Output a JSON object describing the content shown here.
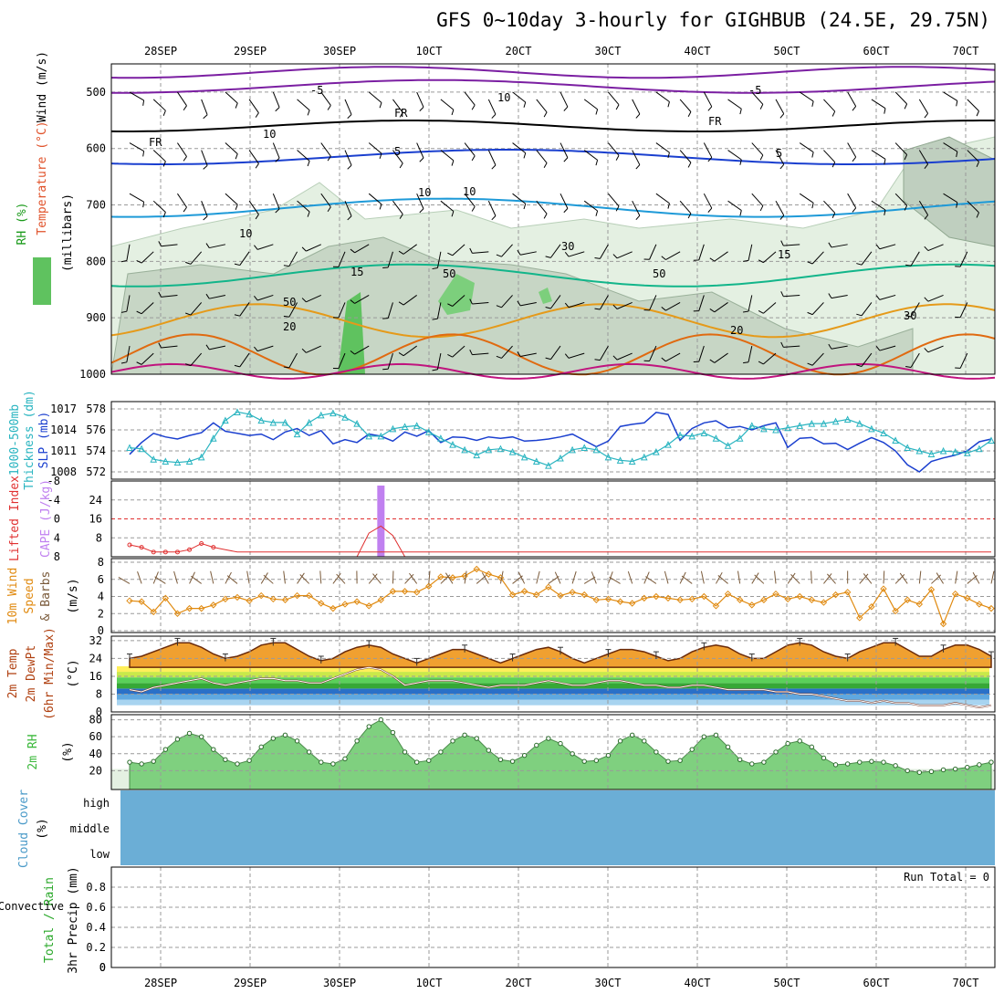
{
  "title": "GFS 0~10day 3-hourly for GIGHBUB (24.5E, 29.75N)",
  "colors": {
    "temp": "#7b1fa2",
    "freezing": "#000000",
    "rh_fill": "#d6e8d6",
    "slp": "#1a3fcf",
    "thick": "#29b4c0",
    "li": "#e03030",
    "cape": "#c080f0",
    "wind10": "#e08a10",
    "t2m": "#d96a0a",
    "rh2m": "#3ab83a",
    "cloud": "#6baed6"
  },
  "chart_data": [
    {
      "type": "heatmap",
      "name": "upper-air",
      "x": [
        "28SEP",
        "29SEP",
        "30SEP",
        "10CT",
        "20CT",
        "30CT",
        "40CT",
        "50CT",
        "60CT",
        "70CT"
      ],
      "ylabel_parts": [
        "RH (%)",
        "Temperature (°C)",
        "Wind (m/s)"
      ],
      "yunit": "(millibars)",
      "yticks": [
        500,
        600,
        700,
        800,
        900,
        1000
      ],
      "ylim": [
        1000,
        450
      ],
      "contour_labels": [
        "-5",
        "-5",
        "FR",
        "FR",
        "FR",
        "5",
        "5",
        "10",
        "10",
        "15",
        "15",
        "20",
        "20",
        "10",
        "10",
        "10",
        "30",
        "50",
        "50",
        "30",
        "50"
      ]
    },
    {
      "type": "line",
      "name": "slp-thickness",
      "ylabel_left": [
        "1000-500mb",
        "Thickness (dm)"
      ],
      "ylabel_right": "SLP (mb)",
      "yticks_left": [
        572,
        574,
        576,
        578
      ],
      "yticks_right": [
        1008,
        1011,
        1014,
        1017
      ],
      "series": [
        {
          "name": "SLP (mb)",
          "values": [
            1010.5,
            1012.2,
            1013.5,
            1013,
            1012.7,
            1013.2,
            1013.6,
            1015,
            1013.8,
            1013.5,
            1013.2,
            1013.4,
            1012.6,
            1013.7,
            1014.2,
            1013.2,
            1013.9,
            1012,
            1012.6,
            1012.2,
            1013.4,
            1013.1,
            1012.4,
            1013.7,
            1013.1,
            1013.9,
            1012.2,
            1013,
            1012.9,
            1012.5,
            1013,
            1012.8,
            1013,
            1012.4,
            1012.5,
            1012.7,
            1013,
            1013.4,
            1012.5,
            1011.6,
            1012.4,
            1014.5,
            1014.8,
            1015,
            1016.5,
            1016.2,
            1012.5,
            1014.2,
            1015,
            1015.3,
            1014.3,
            1014.5,
            1014,
            1014.6,
            1015,
            1011.5,
            1012.8,
            1012.9,
            1012,
            1012.1,
            1011.2,
            1012.1,
            1012.9,
            1012.2,
            1011,
            1009,
            1008,
            1009.5,
            1010,
            1010.4,
            1011,
            1012.3,
            1012.7
          ]
        },
        {
          "name": "Thickness (dm)",
          "values": [
            574.3,
            574.2,
            573.2,
            573,
            572.9,
            573,
            573.4,
            575.2,
            576.9,
            577.7,
            577.5,
            576.9,
            576.7,
            576.7,
            575.6,
            576.7,
            577.4,
            577.6,
            577.2,
            576.6,
            575.4,
            575.4,
            576.1,
            576.3,
            576.4,
            575.8,
            575.2,
            574.6,
            574.1,
            573.6,
            574.1,
            574.2,
            573.9,
            573.4,
            573,
            572.6,
            573.3,
            574.1,
            574.3,
            574.1,
            573.4,
            573.1,
            573,
            573.4,
            573.9,
            574.6,
            575.5,
            575.4,
            575.7,
            575.2,
            574.5,
            575.2,
            576.4,
            576.1,
            576,
            576.2,
            576.4,
            576.6,
            576.6,
            576.8,
            577,
            576.6,
            576.1,
            575.7,
            575,
            574.3,
            574,
            573.7,
            574,
            573.9,
            573.8,
            574.2,
            575
          ]
        }
      ]
    },
    {
      "type": "bar",
      "name": "li-cape",
      "ylabel_left": "Lifted Index",
      "ylabel_right": "CAPE (J/kg)",
      "yticks_left": [
        "-8",
        "-4",
        "0",
        "4",
        "8"
      ],
      "yticks_right": [
        8,
        16,
        24
      ],
      "cape_value": 32,
      "li_values": [
        5.5,
        6,
        7,
        7,
        7,
        6.5,
        5.2,
        6,
        6.5,
        7,
        7,
        7,
        7,
        7,
        7,
        7,
        7,
        7,
        7,
        7,
        7,
        7,
        7,
        7,
        7,
        7,
        7,
        7,
        7,
        7,
        7,
        7,
        7,
        7,
        7,
        7,
        7,
        7,
        7,
        7,
        7,
        7,
        7,
        7,
        7,
        7,
        7,
        7,
        7,
        7,
        7,
        7,
        7,
        7,
        7,
        7,
        7,
        7,
        7,
        7,
        7,
        7,
        7,
        7,
        7,
        7,
        7,
        7,
        7,
        7,
        7,
        7,
        7
      ]
    },
    {
      "type": "line",
      "name": "wind10",
      "ylabel": [
        "10m Wind",
        "Speed",
        "& Barbs"
      ],
      "yunit": "(m/s)",
      "yticks": [
        0,
        2,
        4,
        6,
        8
      ],
      "series": [
        {
          "name": "Speed",
          "values": [
            3.5,
            3.4,
            2.2,
            3.8,
            2,
            2.6,
            2.6,
            3,
            3.7,
            3.9,
            3.5,
            4.1,
            3.7,
            3.6,
            4.1,
            4.1,
            3.2,
            2.6,
            3.1,
            3.4,
            2.9,
            3.6,
            4.6,
            4.6,
            4.5,
            5.2,
            6.3,
            6.2,
            6.4,
            7.2,
            6.6,
            6.2,
            4.2,
            4.6,
            4.2,
            5.1,
            4.1,
            4.5,
            4.2,
            3.6,
            3.7,
            3.4,
            3.2,
            3.8,
            4,
            3.8,
            3.6,
            3.7,
            4,
            2.9,
            4.3,
            3.6,
            3,
            3.6,
            4.3,
            3.7,
            4,
            3.6,
            3.3,
            4.2,
            4.5,
            1.5,
            2.8,
            4.9,
            2.3,
            3.6,
            3.1,
            4.8,
            0.8,
            4.3,
            3.8,
            3.1,
            2.6
          ]
        }
      ]
    },
    {
      "type": "area",
      "name": "temp2m",
      "ylabel": [
        "2m Temp",
        "2m DewPt",
        "(6hr Min/Max)"
      ],
      "yunit": "(°C)",
      "yticks": [
        0,
        8,
        16,
        24,
        32
      ],
      "series": [
        {
          "name": "Temp",
          "values": [
            24,
            25,
            27,
            29,
            31,
            31,
            29,
            26,
            24,
            25,
            27,
            30,
            31,
            31,
            28,
            25,
            23,
            24,
            27,
            29,
            30,
            29,
            26,
            24,
            22,
            24,
            26,
            28,
            28,
            26,
            24,
            22,
            24,
            26,
            28,
            29,
            27,
            24,
            22,
            24,
            26,
            28,
            28,
            27,
            25,
            23,
            24,
            27,
            29,
            30,
            29,
            26,
            24,
            24,
            27,
            30,
            31,
            30,
            27,
            25,
            24,
            27,
            29,
            31,
            31,
            28,
            25,
            25,
            28,
            30,
            30,
            28,
            25
          ]
        },
        {
          "name": "DewPt",
          "values": [
            10,
            9,
            11,
            12,
            13,
            14,
            15,
            13,
            12,
            13,
            14,
            15,
            15,
            14,
            14,
            13,
            13,
            15,
            17,
            19,
            20,
            19,
            16,
            12,
            13,
            14,
            14,
            14,
            13,
            12,
            11,
            12,
            12,
            12,
            13,
            14,
            13,
            12,
            12,
            13,
            14,
            14,
            13,
            12,
            12,
            11,
            11,
            12,
            12,
            11,
            10,
            10,
            10,
            10,
            9,
            9,
            8,
            8,
            7,
            6,
            5,
            5,
            4,
            5,
            4,
            4,
            3,
            3,
            3,
            4,
            3,
            2,
            3
          ]
        }
      ]
    },
    {
      "type": "area",
      "name": "rh2m",
      "ylabel": "2m RH",
      "yunit": "(%)",
      "yticks": [
        20,
        40,
        60,
        80
      ],
      "series": [
        {
          "name": "RH",
          "values": [
            30,
            28,
            31,
            45,
            57,
            64,
            60,
            45,
            33,
            28,
            32,
            48,
            58,
            62,
            55,
            42,
            30,
            28,
            34,
            55,
            72,
            80,
            65,
            42,
            30,
            32,
            42,
            55,
            62,
            58,
            44,
            33,
            31,
            38,
            50,
            58,
            52,
            40,
            31,
            32,
            38,
            55,
            62,
            55,
            42,
            31,
            32,
            45,
            60,
            62,
            48,
            33,
            28,
            30,
            42,
            52,
            55,
            48,
            35,
            27,
            28,
            30,
            31,
            30,
            26,
            20,
            18,
            19,
            21,
            22,
            24,
            27,
            30
          ]
        }
      ]
    },
    {
      "type": "table",
      "name": "cloud-cover",
      "ylabel": "Cloud Cover",
      "yunit": "(%)",
      "rows": [
        "high",
        "middle",
        "low"
      ]
    },
    {
      "type": "bar",
      "name": "precip",
      "ylabel_left_total": "Total / Rain",
      "ylabel_left_conv": "Convective",
      "ylabel_right": "3hr Precip (mm)",
      "yticks": [
        0,
        0.2,
        0.4,
        0.6,
        0.8
      ],
      "run_total": "Run Total = 0",
      "values": []
    }
  ]
}
